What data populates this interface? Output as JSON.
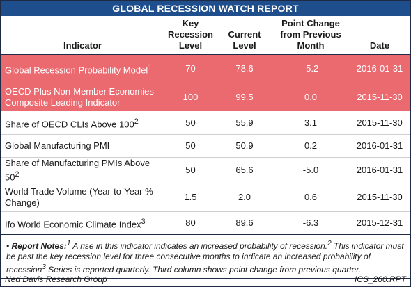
{
  "report": {
    "title": "GLOBAL RECESSION WATCH REPORT",
    "headers": {
      "indicator": "Indicator",
      "key_level": "Key Recession Level",
      "current_level": "Current Level",
      "point_change": "Point Change from Previous Month",
      "date": "Date"
    },
    "rows": [
      {
        "indicator": "Global Recession Probability Model",
        "sup": "1",
        "key": "70",
        "current": "78.6",
        "change": "-5.2",
        "date": "2016-01-31",
        "highlight": true
      },
      {
        "indicator": "OECD Plus Non-Member Economies Composite Leading Indicator",
        "sup": "",
        "key": "100",
        "current": "99.5",
        "change": "0.0",
        "date": "2015-11-30",
        "highlight": true
      },
      {
        "indicator": "Share of OECD CLIs Above 100",
        "sup": "2",
        "key": "50",
        "current": "55.9",
        "change": "3.1",
        "date": "2015-11-30",
        "highlight": false
      },
      {
        "indicator": "Global Manufacturing PMI",
        "sup": "",
        "key": "50",
        "current": "50.9",
        "change": "0.2",
        "date": "2016-01-31",
        "highlight": false
      },
      {
        "indicator": "Share of Manufacturing PMIs Above 50",
        "sup": "2",
        "key": "50",
        "current": "65.6",
        "change": "-5.0",
        "date": "2016-01-31",
        "highlight": false
      },
      {
        "indicator": "World Trade Volume (Year-to-Year % Change)",
        "sup": "",
        "key": "1.5",
        "current": "2.0",
        "change": "0.6",
        "date": "2015-11-30",
        "highlight": false
      },
      {
        "indicator": "Ifo World Economic Climate Index",
        "sup": "3",
        "key": "80",
        "current": "89.6",
        "change": "-6.3",
        "date": "2015-12-31",
        "highlight": false
      }
    ],
    "notes": {
      "bullet": "•",
      "label": "Report Notes:",
      "sup1": "1",
      "text1": " A rise in this indicator indicates an increased probability of recession.",
      "sup2": "2",
      "text2": " This indicator must be past the key recession level for three consecutive months to indicate an increased probability of recession",
      "sup3": "3",
      "text3": " Series is reported quarterly. Third column shows point change from previous quarter."
    },
    "footer": {
      "source": "Ned Davis Research Group",
      "code": "ICS_260.RPT"
    },
    "colors": {
      "title_bar": "#1f4e8c",
      "highlight_row": "#ea6a70"
    }
  }
}
